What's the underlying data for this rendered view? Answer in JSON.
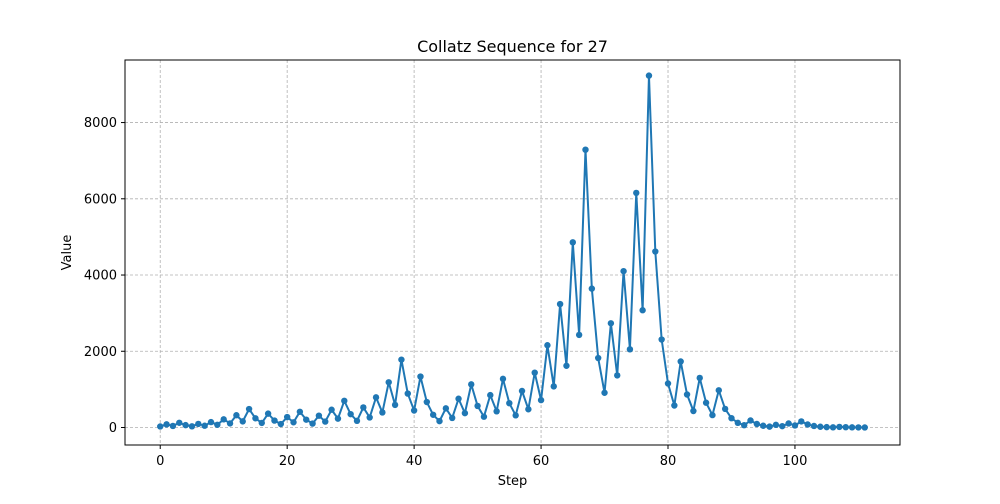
{
  "chart_data": {
    "type": "line",
    "title": "Collatz Sequence for 27",
    "xlabel": "Step",
    "ylabel": "Value",
    "xlim": [
      -5.55,
      116.55
    ],
    "ylim": [
      -459.1,
      9641.1
    ],
    "xticks": [
      0,
      20,
      40,
      60,
      80,
      100
    ],
    "yticks": [
      0,
      2000,
      4000,
      6000,
      8000
    ],
    "grid": true,
    "grid_style": "dashed",
    "line_color": "#1f77b4",
    "marker": "circle",
    "series": [
      {
        "name": "Collatz 27",
        "x": [
          0,
          1,
          2,
          3,
          4,
          5,
          6,
          7,
          8,
          9,
          10,
          11,
          12,
          13,
          14,
          15,
          16,
          17,
          18,
          19,
          20,
          21,
          22,
          23,
          24,
          25,
          26,
          27,
          28,
          29,
          30,
          31,
          32,
          33,
          34,
          35,
          36,
          37,
          38,
          39,
          40,
          41,
          42,
          43,
          44,
          45,
          46,
          47,
          48,
          49,
          50,
          51,
          52,
          53,
          54,
          55,
          56,
          57,
          58,
          59,
          60,
          61,
          62,
          63,
          64,
          65,
          66,
          67,
          68,
          69,
          70,
          71,
          72,
          73,
          74,
          75,
          76,
          77,
          78,
          79,
          80,
          81,
          82,
          83,
          84,
          85,
          86,
          87,
          88,
          89,
          90,
          91,
          92,
          93,
          94,
          95,
          96,
          97,
          98,
          99,
          100,
          101,
          102,
          103,
          104,
          105,
          106,
          107,
          108,
          109,
          110,
          111
        ],
        "values": [
          27,
          82,
          41,
          124,
          62,
          31,
          94,
          47,
          142,
          71,
          214,
          107,
          322,
          161,
          484,
          242,
          121,
          364,
          182,
          91,
          274,
          137,
          412,
          206,
          103,
          310,
          155,
          466,
          233,
          700,
          350,
          175,
          526,
          263,
          790,
          395,
          1186,
          593,
          1780,
          890,
          445,
          1336,
          668,
          334,
          167,
          502,
          251,
          754,
          377,
          1132,
          566,
          283,
          850,
          425,
          1276,
          638,
          319,
          958,
          479,
          1438,
          719,
          2158,
          1079,
          3238,
          1619,
          4858,
          2429,
          7288,
          3644,
          1822,
          911,
          2734,
          1367,
          4102,
          2051,
          6154,
          3077,
          9232,
          4616,
          2308,
          1154,
          577,
          1732,
          866,
          433,
          1300,
          650,
          325,
          976,
          488,
          244,
          122,
          61,
          184,
          92,
          46,
          23,
          70,
          35,
          106,
          53,
          160,
          80,
          40,
          20,
          10,
          5,
          16,
          8,
          4,
          2,
          1
        ]
      }
    ]
  }
}
